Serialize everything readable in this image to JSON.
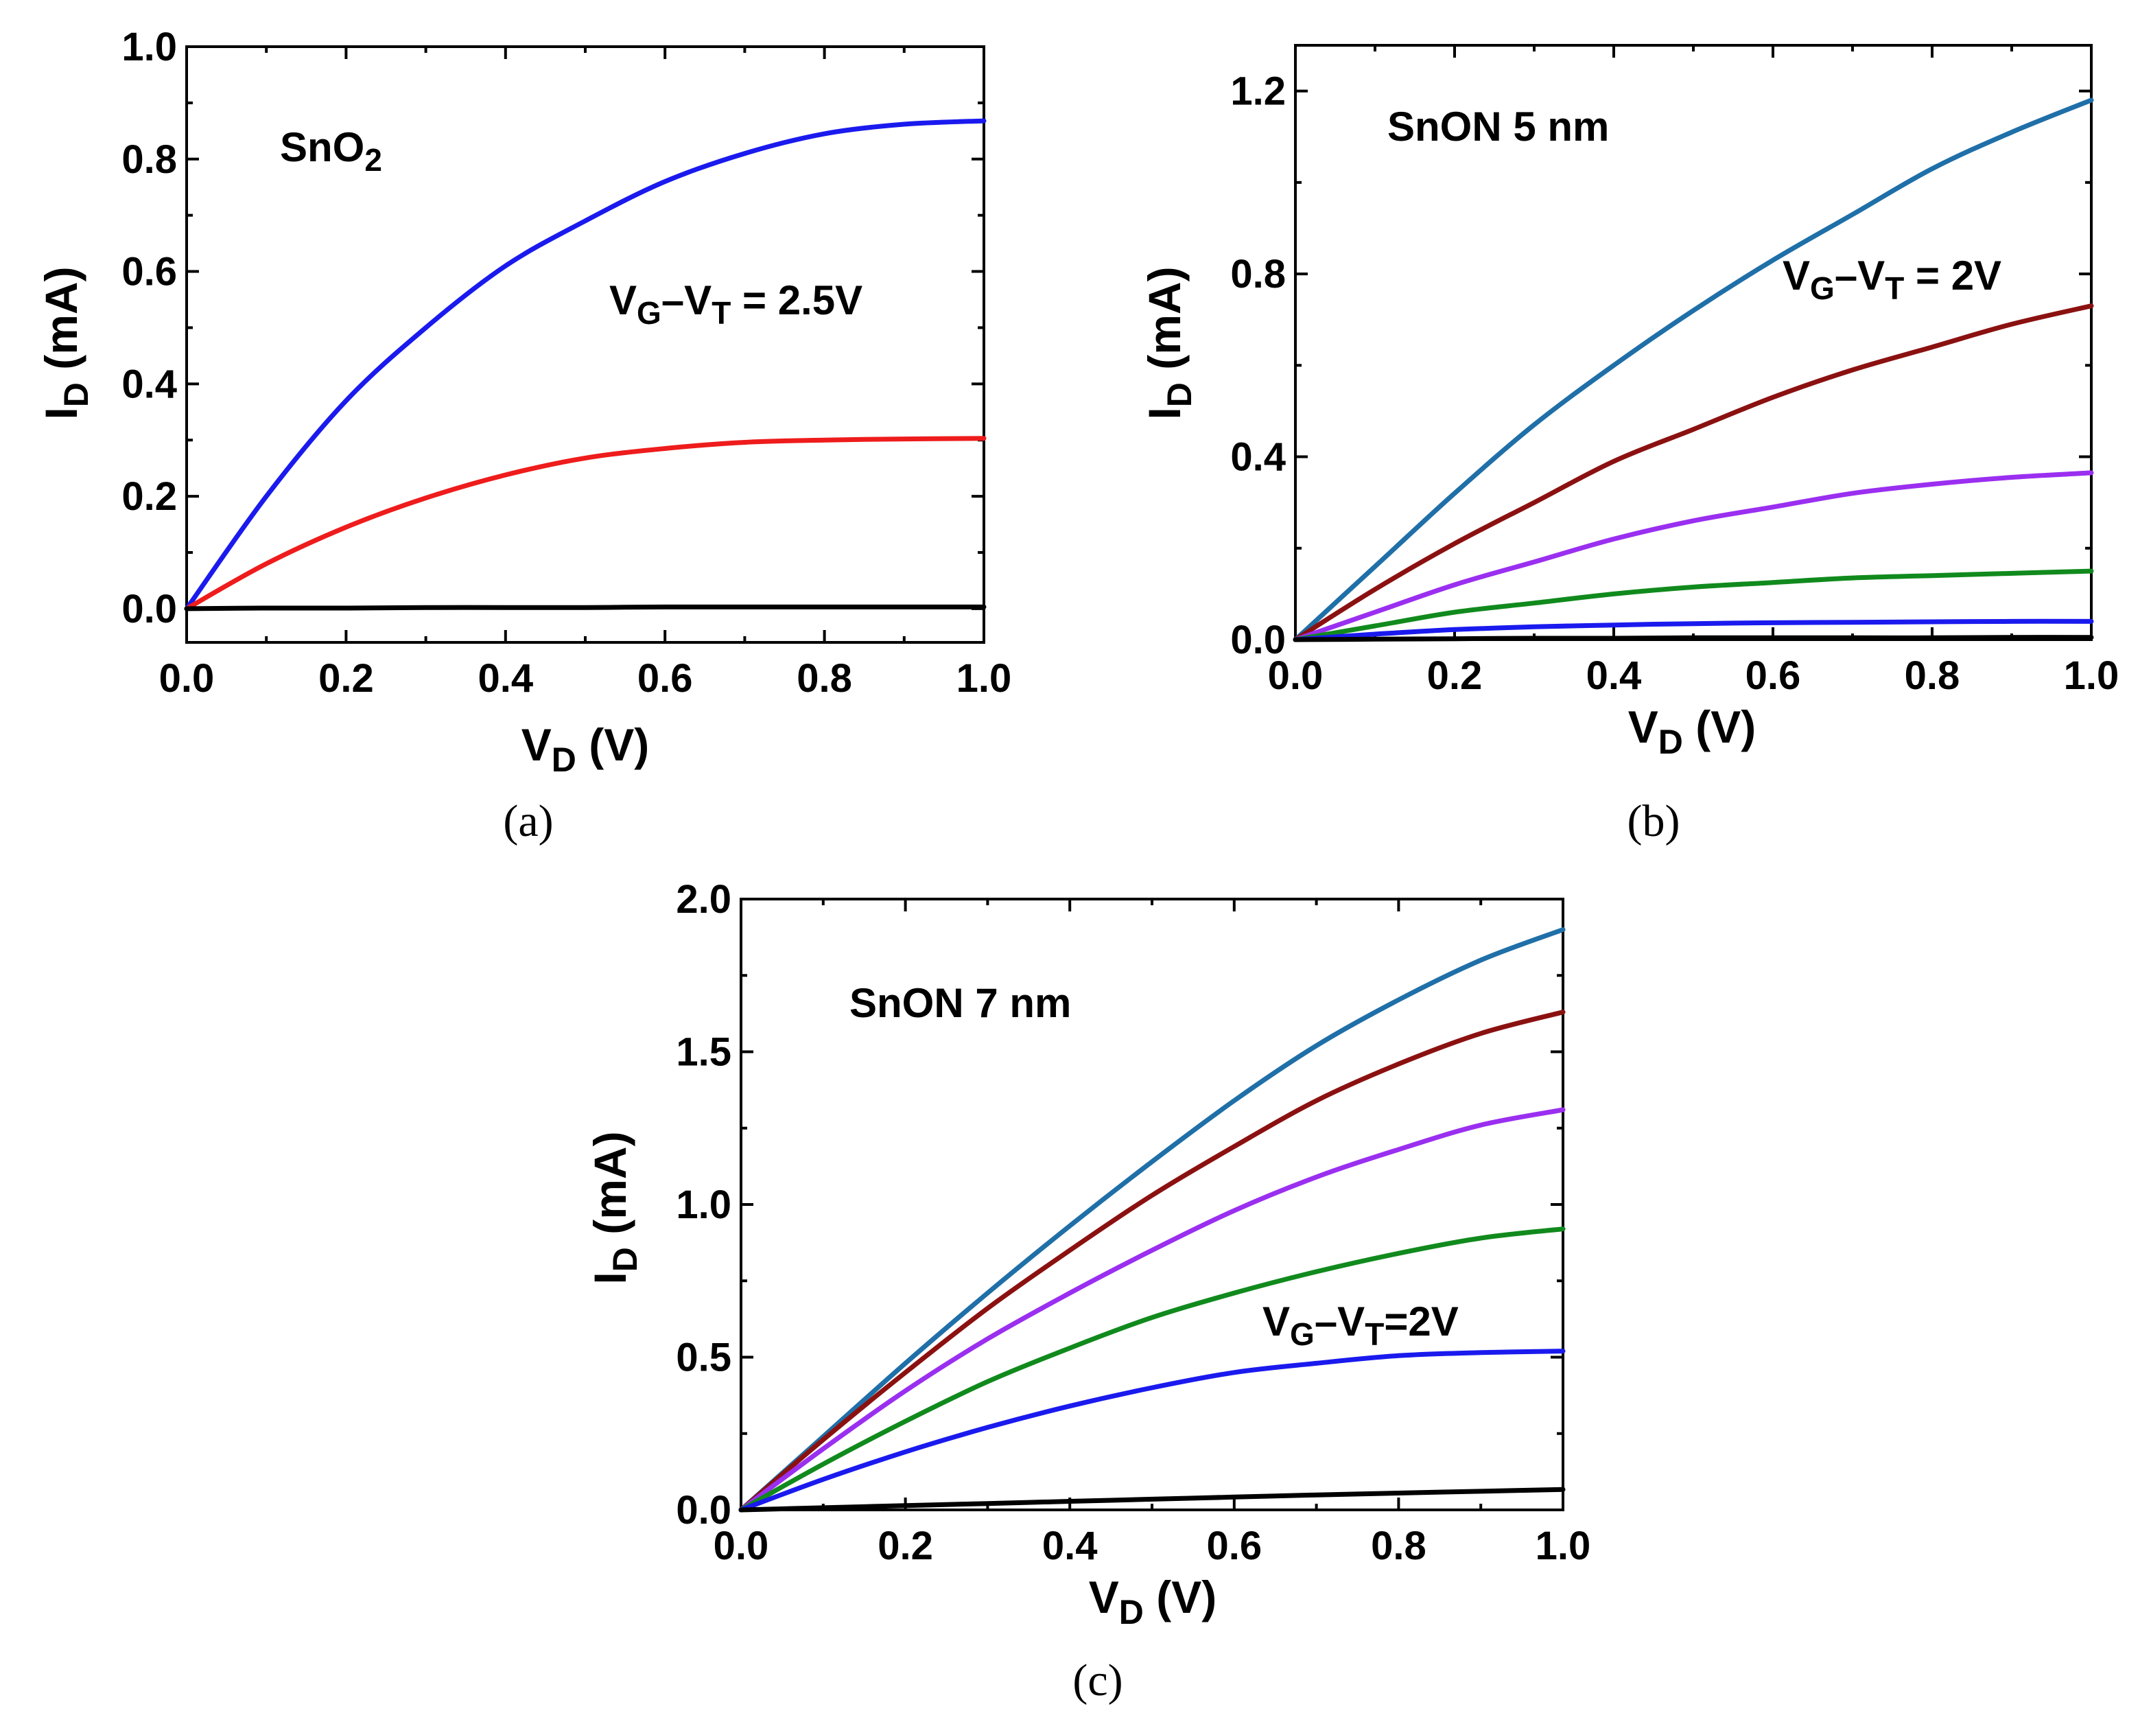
{
  "chart_data": [
    {
      "type": "line",
      "panel": "(a)",
      "title": "SnO2",
      "xlabel": "V_D (V)",
      "ylabel": "I_D (mA)",
      "xlim": [
        0,
        1
      ],
      "ylim": [
        -0.06,
        1.0
      ],
      "xticks": [
        "0.0",
        "0.2",
        "0.4",
        "0.6",
        "0.8",
        "1.0"
      ],
      "yticks": [
        "0.0",
        "0.2",
        "0.4",
        "0.6",
        "0.8",
        "1.0"
      ],
      "annotation": "VG–VT = 2.5V",
      "x": [
        0,
        0.1,
        0.2,
        0.3,
        0.4,
        0.5,
        0.6,
        0.7,
        0.8,
        0.9,
        1.0
      ],
      "series": [
        {
          "name": "blue",
          "color": "#1a1aee",
          "values": [
            0,
            0.2,
            0.37,
            0.5,
            0.61,
            0.69,
            0.76,
            0.81,
            0.845,
            0.862,
            0.868
          ]
        },
        {
          "name": "red",
          "color": "#ee1c1c",
          "values": [
            0,
            0.08,
            0.145,
            0.197,
            0.238,
            0.268,
            0.285,
            0.296,
            0.3,
            0.302,
            0.303
          ]
        },
        {
          "name": "black",
          "color": "#000000",
          "values": [
            0,
            0.001,
            0.001,
            0.002,
            0.002,
            0.002,
            0.003,
            0.003,
            0.003,
            0.003,
            0.003
          ]
        }
      ]
    },
    {
      "type": "line",
      "panel": "(b)",
      "title": "SnON 5 nm",
      "xlabel": "V_D (V)",
      "ylabel": "I_D (mA)",
      "xlim": [
        0,
        1
      ],
      "ylim": [
        0,
        1.3
      ],
      "xticks": [
        "0.0",
        "0.2",
        "0.4",
        "0.6",
        "0.8",
        "1.0"
      ],
      "yticks": [
        "0.0",
        "0.4",
        "0.8",
        "1.2"
      ],
      "annotation": "VG–VT = 2V",
      "x": [
        0,
        0.1,
        0.2,
        0.3,
        0.4,
        0.5,
        0.6,
        0.7,
        0.8,
        0.9,
        1.0
      ],
      "series": [
        {
          "name": "teal",
          "color": "#1f6fa8",
          "values": [
            0,
            0.16,
            0.32,
            0.47,
            0.6,
            0.72,
            0.83,
            0.93,
            1.03,
            1.11,
            1.18
          ]
        },
        {
          "name": "dark-red",
          "color": "#8b1111",
          "values": [
            0,
            0.11,
            0.21,
            0.3,
            0.39,
            0.46,
            0.53,
            0.59,
            0.64,
            0.69,
            0.73
          ]
        },
        {
          "name": "violet",
          "color": "#9a2ff0",
          "values": [
            0,
            0.06,
            0.12,
            0.17,
            0.22,
            0.26,
            0.29,
            0.32,
            0.34,
            0.355,
            0.365
          ]
        },
        {
          "name": "green",
          "color": "#118a1d",
          "values": [
            0,
            0.03,
            0.06,
            0.08,
            0.1,
            0.115,
            0.125,
            0.135,
            0.14,
            0.145,
            0.15
          ]
        },
        {
          "name": "blue",
          "color": "#1a1aee",
          "values": [
            0,
            0.012,
            0.022,
            0.028,
            0.032,
            0.035,
            0.037,
            0.038,
            0.039,
            0.04,
            0.04
          ]
        },
        {
          "name": "black",
          "color": "#000000",
          "values": [
            0,
            0.001,
            0.002,
            0.003,
            0.003,
            0.004,
            0.004,
            0.004,
            0.004,
            0.005,
            0.005
          ]
        }
      ]
    },
    {
      "type": "line",
      "panel": "(c)",
      "title": "SnON 7 nm",
      "xlabel": "V_D (V)",
      "ylabel": "I_D (mA)",
      "xlim": [
        0,
        1
      ],
      "ylim": [
        0,
        2.0
      ],
      "xticks": [
        "0.0",
        "0.2",
        "0.4",
        "0.6",
        "0.8",
        "1.0"
      ],
      "yticks": [
        "0.0",
        "0.5",
        "1.0",
        "1.5",
        "2.0"
      ],
      "annotation": "VG–VT=2V",
      "x": [
        0,
        0.1,
        0.2,
        0.3,
        0.4,
        0.5,
        0.6,
        0.7,
        0.8,
        0.9,
        1.0
      ],
      "series": [
        {
          "name": "teal",
          "color": "#1f6fa8",
          "values": [
            0,
            0.24,
            0.48,
            0.71,
            0.93,
            1.14,
            1.34,
            1.52,
            1.67,
            1.8,
            1.9
          ]
        },
        {
          "name": "dark-red",
          "color": "#8b1111",
          "values": [
            0,
            0.23,
            0.45,
            0.66,
            0.85,
            1.03,
            1.19,
            1.34,
            1.46,
            1.56,
            1.63
          ]
        },
        {
          "name": "violet",
          "color": "#9a2ff0",
          "values": [
            0,
            0.2,
            0.39,
            0.56,
            0.71,
            0.85,
            0.98,
            1.09,
            1.18,
            1.26,
            1.31
          ]
        },
        {
          "name": "green",
          "color": "#118a1d",
          "values": [
            0,
            0.15,
            0.29,
            0.42,
            0.53,
            0.63,
            0.71,
            0.78,
            0.84,
            0.89,
            0.92
          ]
        },
        {
          "name": "blue",
          "color": "#1a1aee",
          "values": [
            0,
            0.1,
            0.19,
            0.27,
            0.34,
            0.4,
            0.45,
            0.48,
            0.505,
            0.515,
            0.52
          ]
        },
        {
          "name": "black",
          "color": "#000000",
          "values": [
            0,
            0.007,
            0.014,
            0.021,
            0.028,
            0.035,
            0.042,
            0.049,
            0.055,
            0.061,
            0.067
          ]
        }
      ]
    }
  ],
  "labels": {
    "a": {
      "title_main": "SnO",
      "title_sub": "2",
      "annot_v1": "V",
      "annot_s1": "G",
      "annot_mid": "–V",
      "annot_s2": "T",
      "annot_tail": " = 2.5V",
      "caption": "(a)"
    },
    "b": {
      "title": "SnON 5 nm",
      "annot_v1": "V",
      "annot_s1": "G",
      "annot_mid": "–V",
      "annot_s2": "T",
      "annot_tail": " = 2V",
      "caption": "(b)"
    },
    "c": {
      "title": "SnON 7 nm",
      "annot_v1": "V",
      "annot_s1": "G",
      "annot_mid": "–V",
      "annot_s2": "T",
      "annot_tail": "=2V",
      "caption": "(c)"
    },
    "ylabel_main": "I",
    "ylabel_sub": "D",
    "ylabel_tail": " (mA)",
    "xlabel_main": "V",
    "xlabel_sub": "D",
    "xlabel_tail": " (V)"
  }
}
